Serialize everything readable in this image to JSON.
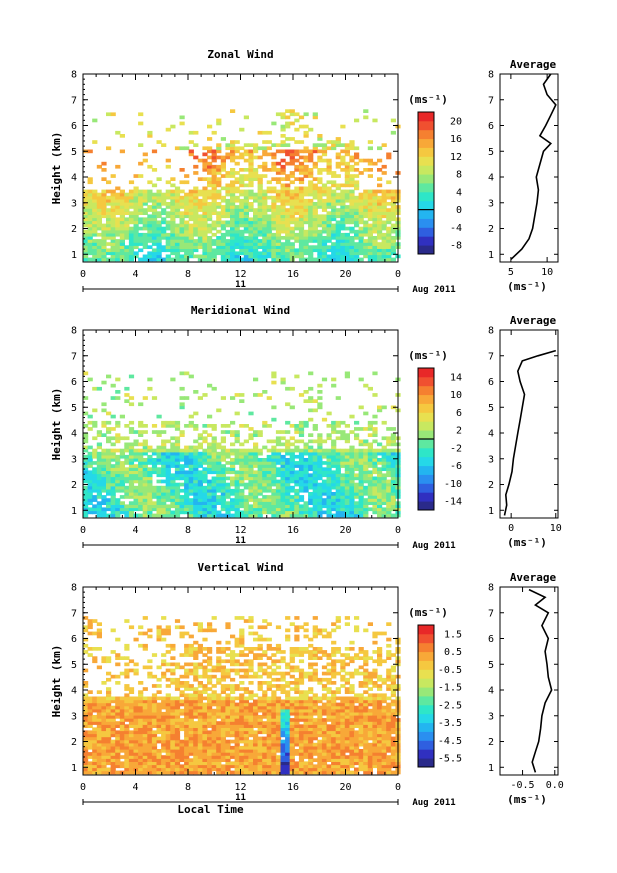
{
  "chart_data": [
    {
      "type": "heatmap",
      "title": "Zonal Wind",
      "ylabel": "Height (km)",
      "xticks": [
        "0",
        "4",
        "8",
        "12",
        "16",
        "20",
        "0"
      ],
      "xlim": [
        0,
        24
      ],
      "ylim": [
        0.7,
        8
      ],
      "yticks": [
        "1",
        "2",
        "3",
        "4",
        "5",
        "6",
        "7",
        "8"
      ],
      "date_day": "11",
      "date_label": "Aug 2011",
      "colorbar": {
        "unit": "(ms⁻¹)",
        "ticks": [
          "20",
          "16",
          "12",
          "8",
          "4",
          "0",
          "-4",
          "-8"
        ],
        "range": [
          -10,
          22
        ],
        "zero_line": 0
      },
      "profile": {
        "title": "Average",
        "xlabel": "(ms⁻¹)",
        "xticks": [
          "5",
          "10"
        ],
        "xlim": [
          3.5,
          11.5
        ],
        "heights": [
          0.8,
          1.2,
          1.6,
          2.0,
          2.5,
          3.0,
          3.5,
          4.0,
          4.5,
          5.0,
          5.3,
          5.6,
          6.0,
          6.4,
          6.8,
          7.2,
          7.6,
          8.0
        ],
        "values": [
          5.0,
          6.5,
          7.5,
          8.0,
          8.3,
          8.6,
          8.8,
          8.5,
          9.0,
          9.5,
          10.5,
          9.0,
          9.8,
          10.5,
          11.2,
          10.0,
          9.5,
          10.5
        ]
      }
    },
    {
      "type": "heatmap",
      "title": "Meridional Wind",
      "ylabel": "Height (km)",
      "xticks": [
        "0",
        "4",
        "8",
        "12",
        "16",
        "20",
        "0"
      ],
      "xlim": [
        0,
        24
      ],
      "ylim": [
        0.7,
        8
      ],
      "yticks": [
        "1",
        "2",
        "3",
        "4",
        "5",
        "6",
        "7",
        "8"
      ],
      "date_day": "11",
      "date_label": "Aug 2011",
      "colorbar": {
        "unit": "(ms⁻¹)",
        "ticks": [
          "14",
          "10",
          "6",
          "2",
          "-2",
          "-6",
          "-10",
          "-14"
        ],
        "range": [
          -16,
          16
        ],
        "zero_line": 0
      },
      "profile": {
        "title": "Average",
        "xlabel": "(ms⁻¹)",
        "xticks": [
          "0",
          "10"
        ],
        "xlim": [
          -2.5,
          10.5
        ],
        "heights": [
          0.8,
          1.2,
          1.6,
          2.0,
          2.5,
          3.0,
          3.5,
          4.0,
          4.5,
          5.0,
          5.5,
          6.0,
          6.4,
          6.8,
          7.0,
          7.2
        ],
        "values": [
          -1.5,
          -1.0,
          -1.2,
          -0.5,
          0.2,
          0.5,
          1.0,
          1.5,
          2.0,
          2.5,
          3.0,
          2.0,
          1.5,
          2.5,
          6.0,
          10.0
        ]
      }
    },
    {
      "type": "heatmap",
      "title": "Vertical Wind",
      "ylabel": "Height (km)",
      "xlabel": "Local Time",
      "xticks": [
        "0",
        "4",
        "8",
        "12",
        "16",
        "20",
        "0"
      ],
      "xlim": [
        0,
        24
      ],
      "ylim": [
        0.7,
        8
      ],
      "yticks": [
        "1",
        "2",
        "3",
        "4",
        "5",
        "6",
        "7",
        "8"
      ],
      "date_day": "11",
      "date_label": "Aug 2011",
      "colorbar": {
        "unit": "(ms⁻¹)",
        "ticks": [
          "1.5",
          "0.5",
          "-0.5",
          "-1.5",
          "-2.5",
          "-3.5",
          "-4.5",
          "-5.5"
        ],
        "range": [
          -6,
          2
        ]
      },
      "profile": {
        "title": "Average",
        "xlabel": "(ms⁻¹)",
        "xticks": [
          "-0.5",
          "0.0"
        ],
        "xlim": [
          -0.85,
          0.05
        ],
        "heights": [
          0.8,
          1.2,
          1.6,
          2.0,
          2.5,
          3.0,
          3.5,
          4.0,
          4.5,
          5.0,
          5.5,
          6.0,
          6.5,
          7.0,
          7.3,
          7.6,
          7.9
        ],
        "values": [
          -0.3,
          -0.35,
          -0.3,
          -0.25,
          -0.22,
          -0.2,
          -0.15,
          -0.05,
          -0.1,
          -0.12,
          -0.15,
          -0.1,
          -0.2,
          -0.1,
          -0.3,
          -0.15,
          -0.4
        ]
      }
    }
  ]
}
